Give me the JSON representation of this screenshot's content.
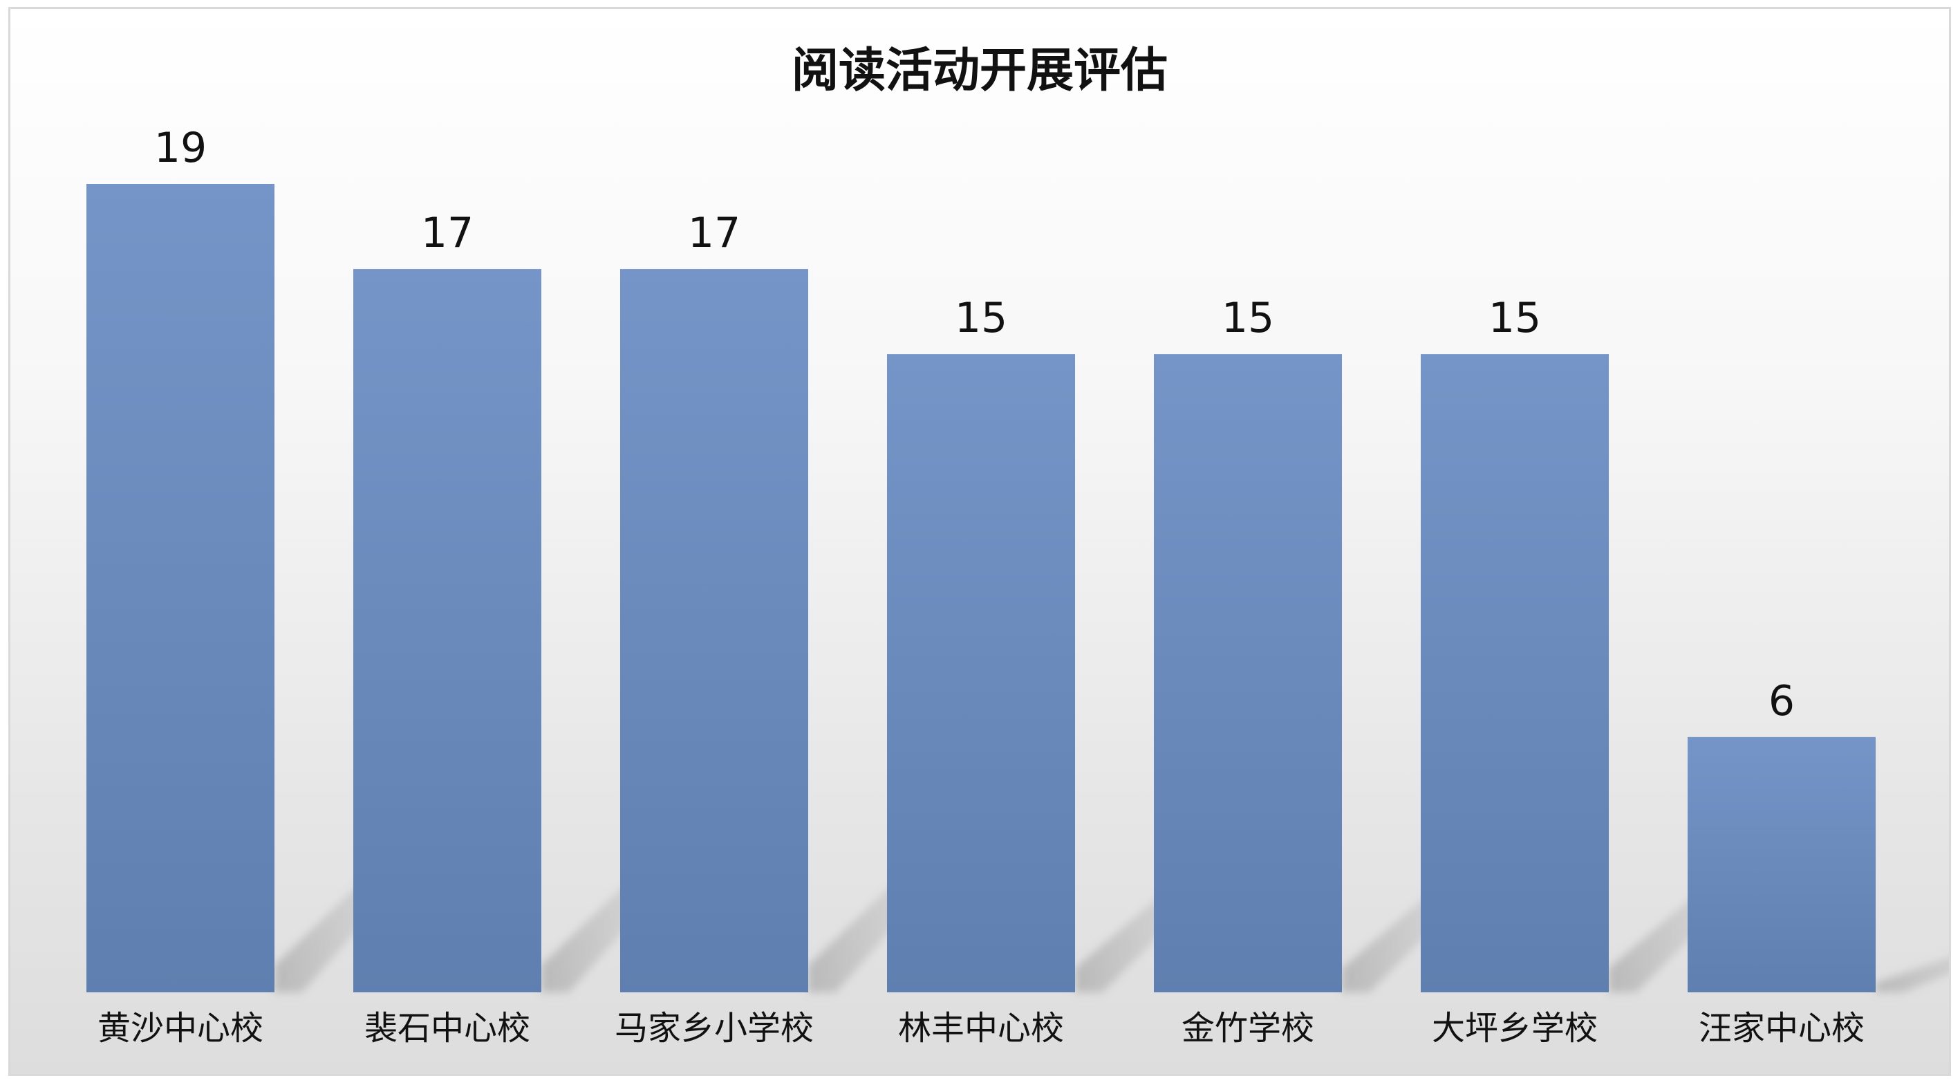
{
  "chart_data": {
    "type": "bar",
    "title": "阅读活动开展评估",
    "categories": [
      "黄沙中心校",
      "裴石中心校",
      "马家乡小学校",
      "林丰中心校",
      "金竹学校",
      "大坪乡学校",
      "汪家中心校"
    ],
    "values": [
      19,
      17,
      17,
      15,
      15,
      15,
      6
    ],
    "ylim": [
      0,
      19
    ],
    "xlabel": "",
    "ylabel": "",
    "grid": false,
    "legend": "none",
    "bar_color_top": "#7595c8",
    "bar_color_bottom": "#5f7fb0",
    "shadow_color": "#b8b8b8"
  }
}
